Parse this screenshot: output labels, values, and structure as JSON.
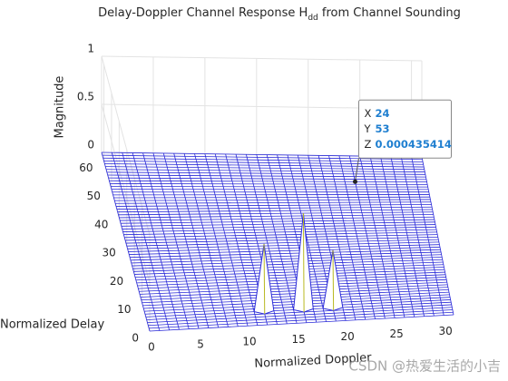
{
  "chart_data": {
    "type": "mesh3d",
    "title": [
      "Delay-Doppler Channel Response H",
      "dd",
      "from Channel Sounding"
    ],
    "xlabel": "Normalized Doppler",
    "ylabel": "Normalized Delay",
    "zlabel": "Magnitude",
    "xlim": [
      0,
      31
    ],
    "ylim": [
      0,
      63
    ],
    "zlim": [
      0,
      1
    ],
    "xticks": [
      0,
      5,
      10,
      15,
      20,
      25,
      30
    ],
    "yticks": [
      0,
      10,
      20,
      30,
      40,
      50,
      60
    ],
    "zticks": [
      0,
      0.5,
      1
    ],
    "color": "#2a2ad8",
    "grid": true,
    "peaks": {
      "x": [
        12,
        16,
        19
      ],
      "y": [
        5,
        5,
        5
      ],
      "z": [
        0.7,
        1,
        0.6
      ]
    },
    "datatip": {
      "labels": [
        "X",
        "Y",
        "Z"
      ],
      "x": 24,
      "y": 53,
      "z": 0.000435414
    },
    "watermark": "CSDN @热爱生活的小吉"
  }
}
